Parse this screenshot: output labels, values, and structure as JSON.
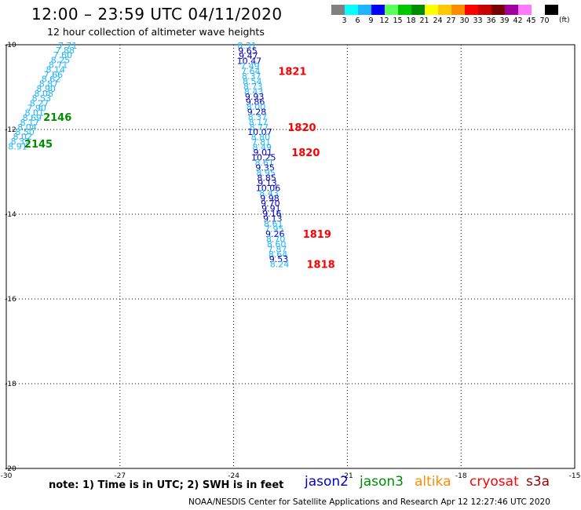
{
  "header": {
    "title": "12:00 – 23:59 UTC 04/11/2020",
    "subtitle": "12 hour collection of altimeter wave heights"
  },
  "color_scale": {
    "colors": [
      "#808080",
      "#00ffff",
      "#1eb4ff",
      "#0000ff",
      "#5aff5a",
      "#00c800",
      "#008c00",
      "#ffff00",
      "#ffc800",
      "#ff8c00",
      "#ff0000",
      "#c80000",
      "#780000",
      "#a000a0",
      "#ff78ff",
      "#ffffff",
      "#000000"
    ],
    "labels": [
      "3",
      "6",
      "9",
      "12",
      "15",
      "18",
      "21",
      "24",
      "27",
      "30",
      "33",
      "36",
      "39",
      "42",
      "45",
      "70"
    ],
    "unit": "(ft)"
  },
  "footer": {
    "note": "note: 1) Time is in UTC; 2) SWH is in feet",
    "legend": [
      {
        "name": "jason2",
        "color": "#0000cc"
      },
      {
        "name": "jason3",
        "color": "#008c00"
      },
      {
        "name": "altika",
        "color": "#ff8c00"
      },
      {
        "name": "cryosat",
        "color": "#ff0000"
      },
      {
        "name": "s3a",
        "color": "#990000"
      }
    ],
    "credit": "NOAA/NESDIS Center for Satellite Applications and Research    Apr 12 12:27:46 UTC 2020"
  },
  "chart_data": {
    "type": "scatter",
    "xlim": [
      -30,
      -15
    ],
    "ylim": [
      -20,
      -10
    ],
    "x_ticks": [
      "-30",
      "-27",
      "-24",
      "-21",
      "-18",
      "-15"
    ],
    "y_ticks": [
      "-10",
      "-12",
      "-14",
      "-16",
      "-18",
      "-20"
    ],
    "grid": true,
    "series": [
      {
        "name": "jason3",
        "color_light": "#1eb4ff",
        "color_dark": "#0000cc",
        "points": [
          {
            "x": -28.38,
            "y": -10.02,
            "v": "7.71",
            "c": "light"
          },
          {
            "x": -28.45,
            "y": -10.13,
            "v": "7.88",
            "c": "light"
          },
          {
            "x": -28.51,
            "y": -10.24,
            "v": "7.60",
            "c": "light"
          },
          {
            "x": -28.57,
            "y": -10.36,
            "v": "8.25",
            "c": "light"
          },
          {
            "x": -28.63,
            "y": -10.47,
            "v": "8.71",
            "c": "light"
          },
          {
            "x": -28.7,
            "y": -10.58,
            "v": "8.14",
            "c": "light"
          },
          {
            "x": -28.76,
            "y": -10.7,
            "v": "7.66",
            "c": "light"
          },
          {
            "x": -28.82,
            "y": -10.81,
            "v": "8.62",
            "c": "light"
          },
          {
            "x": -28.88,
            "y": -10.92,
            "v": "8.87",
            "c": "light"
          },
          {
            "x": -28.95,
            "y": -11.04,
            "v": "8.90",
            "c": "light"
          },
          {
            "x": -29.01,
            "y": -11.15,
            "v": "8.08",
            "c": "light"
          },
          {
            "x": -29.07,
            "y": -11.26,
            "v": "8.53",
            "c": "light"
          },
          {
            "x": -29.13,
            "y": -11.38,
            "v": "8.27",
            "c": "light"
          },
          {
            "x": -29.2,
            "y": -11.49,
            "v": "7.90",
            "c": "light"
          },
          {
            "x": -29.26,
            "y": -11.6,
            "v": "8.01",
            "c": "light"
          },
          {
            "x": -29.32,
            "y": -11.72,
            "v": "8.69",
            "c": "light"
          },
          {
            "x": -29.38,
            "y": -11.83,
            "v": "8.17",
            "c": "light"
          },
          {
            "x": -29.45,
            "y": -11.94,
            "v": "8.04",
            "c": "light"
          },
          {
            "x": -29.51,
            "y": -12.06,
            "v": "8.50",
            "c": "light"
          },
          {
            "x": -29.57,
            "y": -12.17,
            "v": "8.02",
            "c": "light"
          },
          {
            "x": -29.63,
            "y": -12.28,
            "v": "8.37",
            "c": "light"
          },
          {
            "x": -29.7,
            "y": -12.4,
            "v": "8.91",
            "c": "light"
          }
        ],
        "time_labels": [
          {
            "x": -28.65,
            "y": -11.7,
            "text": "2146"
          },
          {
            "x": -29.15,
            "y": -12.33,
            "text": "2145"
          }
        ]
      },
      {
        "name": "cryosat",
        "color_light": "#1eb4ff",
        "color_dark": "#0000cc",
        "points": [
          {
            "x": -23.65,
            "y": -10.02,
            "v": "8.31",
            "c": "light"
          },
          {
            "x": -23.63,
            "y": -10.14,
            "v": "9.65",
            "c": "dark"
          },
          {
            "x": -23.61,
            "y": -10.26,
            "v": "9.47",
            "c": "dark"
          },
          {
            "x": -23.59,
            "y": -10.38,
            "v": "10.47",
            "c": "dark"
          },
          {
            "x": -23.57,
            "y": -10.5,
            "v": "7.49",
            "c": "light"
          },
          {
            "x": -23.55,
            "y": -10.62,
            "v": "7.64",
            "c": "light"
          },
          {
            "x": -23.53,
            "y": -10.74,
            "v": "8.37",
            "c": "light"
          },
          {
            "x": -23.51,
            "y": -10.86,
            "v": "8.54",
            "c": "light"
          },
          {
            "x": -23.49,
            "y": -10.98,
            "v": "8.73",
            "c": "light"
          },
          {
            "x": -23.47,
            "y": -11.1,
            "v": "8.43",
            "c": "light"
          },
          {
            "x": -23.45,
            "y": -11.22,
            "v": "9.93",
            "c": "dark"
          },
          {
            "x": -23.43,
            "y": -11.34,
            "v": "9.86",
            "c": "dark"
          },
          {
            "x": -23.41,
            "y": -11.46,
            "v": "8.00",
            "c": "light"
          },
          {
            "x": -23.39,
            "y": -11.58,
            "v": "9.28",
            "c": "dark"
          },
          {
            "x": -23.37,
            "y": -11.7,
            "v": "8.37",
            "c": "light"
          },
          {
            "x": -23.35,
            "y": -11.82,
            "v": "8.17",
            "c": "light"
          },
          {
            "x": -23.33,
            "y": -11.94,
            "v": "8.77",
            "c": "light"
          },
          {
            "x": -23.31,
            "y": -12.06,
            "v": "10.07",
            "c": "dark"
          },
          {
            "x": -23.29,
            "y": -12.18,
            "v": "8.80",
            "c": "light"
          },
          {
            "x": -23.27,
            "y": -12.3,
            "v": "7.81",
            "c": "light"
          },
          {
            "x": -23.25,
            "y": -12.42,
            "v": "8.49",
            "c": "light"
          },
          {
            "x": -23.23,
            "y": -12.54,
            "v": "9.01",
            "c": "dark"
          },
          {
            "x": -23.21,
            "y": -12.66,
            "v": "10.25",
            "c": "dark"
          },
          {
            "x": -23.19,
            "y": -12.78,
            "v": "8.61",
            "c": "light"
          },
          {
            "x": -23.17,
            "y": -12.9,
            "v": "9.35",
            "c": "dark"
          },
          {
            "x": -23.15,
            "y": -13.02,
            "v": "8.95",
            "c": "light"
          },
          {
            "x": -23.13,
            "y": -13.14,
            "v": "8.85",
            "c": "dark"
          },
          {
            "x": -23.11,
            "y": -13.26,
            "v": "9.13",
            "c": "dark"
          },
          {
            "x": -23.09,
            "y": -13.38,
            "v": "10.06",
            "c": "dark"
          },
          {
            "x": -23.07,
            "y": -13.5,
            "v": "8.43",
            "c": "light"
          },
          {
            "x": -23.05,
            "y": -13.62,
            "v": "9.98",
            "c": "dark"
          },
          {
            "x": -23.03,
            "y": -13.74,
            "v": "9.70",
            "c": "dark"
          },
          {
            "x": -23.01,
            "y": -13.86,
            "v": "9.91",
            "c": "dark"
          },
          {
            "x": -22.99,
            "y": -13.98,
            "v": "9.16",
            "c": "dark"
          },
          {
            "x": -22.97,
            "y": -14.1,
            "v": "9.13",
            "c": "dark"
          },
          {
            "x": -22.95,
            "y": -14.22,
            "v": "8.61",
            "c": "light"
          },
          {
            "x": -22.93,
            "y": -14.34,
            "v": "7.95",
            "c": "light"
          },
          {
            "x": -22.91,
            "y": -14.46,
            "v": "9.26",
            "c": "dark"
          },
          {
            "x": -22.89,
            "y": -14.58,
            "v": "8.70",
            "c": "light"
          },
          {
            "x": -22.87,
            "y": -14.7,
            "v": "8.60",
            "c": "light"
          },
          {
            "x": -22.85,
            "y": -14.82,
            "v": "7.87",
            "c": "light"
          },
          {
            "x": -22.83,
            "y": -14.94,
            "v": "8.64",
            "c": "light"
          },
          {
            "x": -22.81,
            "y": -15.06,
            "v": "9.53",
            "c": "dark"
          },
          {
            "x": -22.79,
            "y": -15.18,
            "v": "8.24",
            "c": "light"
          }
        ],
        "time_labels": [
          {
            "x": -22.45,
            "y": -10.62,
            "text": "1821"
          },
          {
            "x": -22.2,
            "y": -11.94,
            "text": "1820"
          },
          {
            "x": -22.1,
            "y": -12.54,
            "text": "1820"
          },
          {
            "x": -21.8,
            "y": -14.46,
            "text": "1819"
          },
          {
            "x": -21.7,
            "y": -15.18,
            "text": "1818"
          }
        ]
      }
    ]
  }
}
